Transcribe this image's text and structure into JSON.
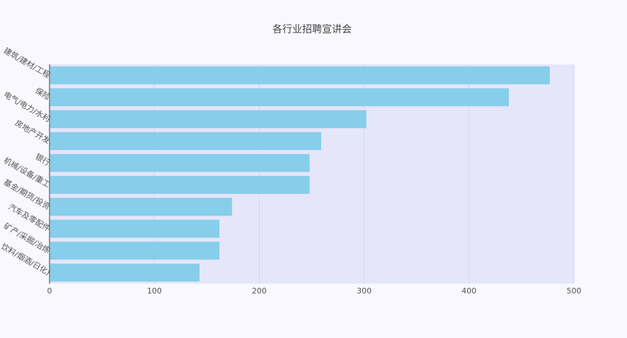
{
  "chart_data": {
    "type": "bar",
    "orientation": "horizontal",
    "title": "各行业招聘宣讲会",
    "xlabel": "",
    "ylabel": "",
    "categories": [
      "建筑/建材/工程",
      "保险",
      "电气/电力/水利",
      "房地产开发",
      "银行",
      "机械/设备/重工",
      "基金/期货/投资",
      "汽车及零配件",
      "矿产/采掘/冶炼",
      "饮料/烟酒/日化)"
    ],
    "values": [
      477,
      438,
      302,
      259,
      248,
      248,
      174,
      162,
      162,
      143
    ],
    "xlim": [
      0,
      500
    ],
    "xticks": [
      "0",
      "100",
      "200",
      "300",
      "400",
      "500"
    ],
    "grid": "vertical",
    "legend": "none",
    "colors": {
      "bar": "#87ceeb",
      "plot_background": "#e6e6fa",
      "page_background": "#f8f8fe",
      "grid": "#d4d4ee",
      "axis": "#333333"
    }
  }
}
